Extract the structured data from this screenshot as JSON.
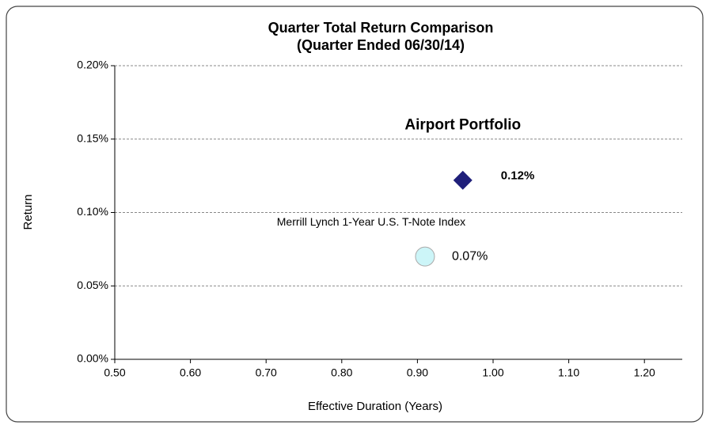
{
  "chart_data": {
    "type": "scatter",
    "title": "Quarter Total Return Comparison",
    "subtitle": "(Quarter Ended 06/30/14)",
    "x_label": "Effective Duration (Years)",
    "y_label": "Return",
    "xlim": [
      0.5,
      1.25
    ],
    "ylim": [
      0,
      0.2
    ],
    "xticks": [
      {
        "value": 0.5,
        "label": "0.50"
      },
      {
        "value": 0.6,
        "label": "0.60"
      },
      {
        "value": 0.7,
        "label": "0.70"
      },
      {
        "value": 0.8,
        "label": "0.80"
      },
      {
        "value": 0.9,
        "label": "0.90"
      },
      {
        "value": 1.0,
        "label": "1.00"
      },
      {
        "value": 1.1,
        "label": "1.10"
      },
      {
        "value": 1.2,
        "label": "1.20"
      }
    ],
    "yticks": [
      {
        "value": 0,
        "label": "0.00%"
      },
      {
        "value": 0.05,
        "label": "0.05%"
      },
      {
        "value": 0.1,
        "label": "0.10%"
      },
      {
        "value": 0.15,
        "label": "0.15%"
      },
      {
        "value": 0.2,
        "label": "0.20%"
      }
    ],
    "grid": true,
    "series": [
      {
        "name": "Airport Portfolio",
        "color": "#1f1f7a",
        "marker": "diamond",
        "x": [
          0.96
        ],
        "values": [
          0.122
        ],
        "value_labels": [
          "0.12%"
        ]
      },
      {
        "name": "Merrill Lynch 1-Year U.S. T-Note Index",
        "color": "#ccf5f8",
        "marker": "circle",
        "x": [
          0.91
        ],
        "values": [
          0.07
        ],
        "value_labels": [
          "0.07%"
        ]
      }
    ]
  }
}
